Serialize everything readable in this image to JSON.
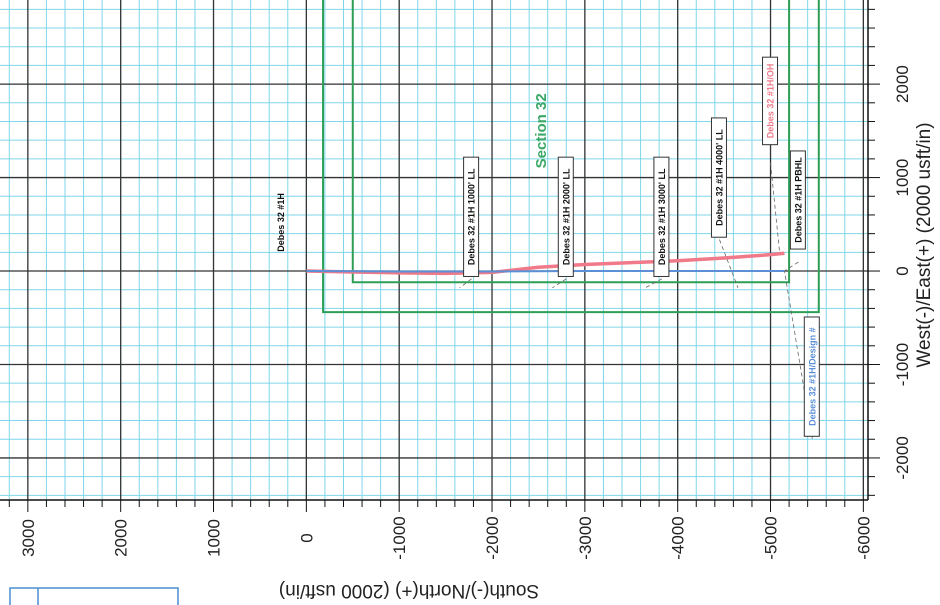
{
  "chart_data": {
    "type": "line",
    "xlabel": "South(-)/North(+) (2000 usft/in)",
    "ylabel": "West(-)/East(+) (2000 usft/in)",
    "x_ticks": [
      3000,
      2000,
      1000,
      0,
      -1000,
      -2000,
      -3000,
      -4000,
      -5000,
      -6000
    ],
    "y_ticks": [
      2000,
      1000,
      0,
      -1000,
      -2000
    ],
    "x_tick_labels": [
      "3000",
      "2000",
      "1000",
      "0",
      "-1000",
      "-2000",
      "-3000",
      "-4000",
      "-5000",
      "-6000"
    ],
    "y_tick_labels": [
      "2000",
      "1000",
      "0",
      "-1000",
      "-2000"
    ],
    "xlim": [
      3300,
      -6050
    ],
    "ylim": [
      2900,
      -2450
    ],
    "grid": true,
    "section_label": "Section 32",
    "section_lines": [
      {
        "x": [
          -500,
          -5200
        ],
        "y": [
          2900,
          -120
        ],
        "color": "#2e9e57"
      },
      {
        "x": [
          -180,
          -5520
        ],
        "y": [
          2900,
          -440
        ],
        "color": "#2e9e57"
      }
    ],
    "series": [
      {
        "name": "Debes 32 #1H/OH",
        "color": "#f07a8a",
        "x": [
          0,
          -500,
          -1000,
          -1500,
          -2000,
          -2500,
          -3000,
          -3500,
          -4000,
          -4500,
          -5000,
          -5150
        ],
        "y": [
          0,
          -10,
          -20,
          -25,
          -15,
          40,
          70,
          90,
          110,
          140,
          175,
          190
        ]
      },
      {
        "name": "Debes 32 #1H/Design #",
        "color": "#5b8fd6",
        "x": [
          0,
          -1000,
          -2000,
          -3000,
          -4000,
          -5000,
          -5150
        ],
        "y": [
          0,
          -5,
          -5,
          0,
          0,
          0,
          0
        ]
      }
    ],
    "annotations": [
      {
        "text": "Debes 32 #1H",
        "x": 275,
        "y": 520,
        "color": "#111111",
        "boxed": false
      },
      {
        "text": "Debes 32 #1H 1000' LL",
        "x": -1780,
        "y": 580,
        "color": "#111111",
        "boxed": true,
        "px": -1650,
        "py": -180
      },
      {
        "text": "Debes 32 #1H 2000' LL",
        "x": -2800,
        "y": 580,
        "color": "#111111",
        "boxed": true,
        "px": -2650,
        "py": -180
      },
      {
        "text": "Debes 32 #1H 3000' LL",
        "x": -3830,
        "y": 580,
        "color": "#111111",
        "boxed": true,
        "px": -3650,
        "py": -180
      },
      {
        "text": "Debes 32 #1H 4000' LL",
        "x": -4450,
        "y": 1000,
        "color": "#111111",
        "boxed": true,
        "px": -4650,
        "py": -180
      },
      {
        "text": "Debes 32 #1H/OH",
        "x": -5000,
        "y": 1820,
        "color": "#f07a8a",
        "boxed": true,
        "px": -5100,
        "py": 180
      },
      {
        "text": "Debes 32 #1H PBHL",
        "x": -5300,
        "y": 760,
        "color": "#111111",
        "boxed": true,
        "px": -5150,
        "py": 0
      },
      {
        "text": "Debes 32 #1H/Design #",
        "x": -5450,
        "y": -1130,
        "color": "#5b8fd6",
        "boxed": true,
        "px": -5150,
        "py": 0
      }
    ]
  },
  "colors": {
    "minor_grid": "#7fd6ea",
    "major_grid": "#333333",
    "axis": "#111111"
  }
}
